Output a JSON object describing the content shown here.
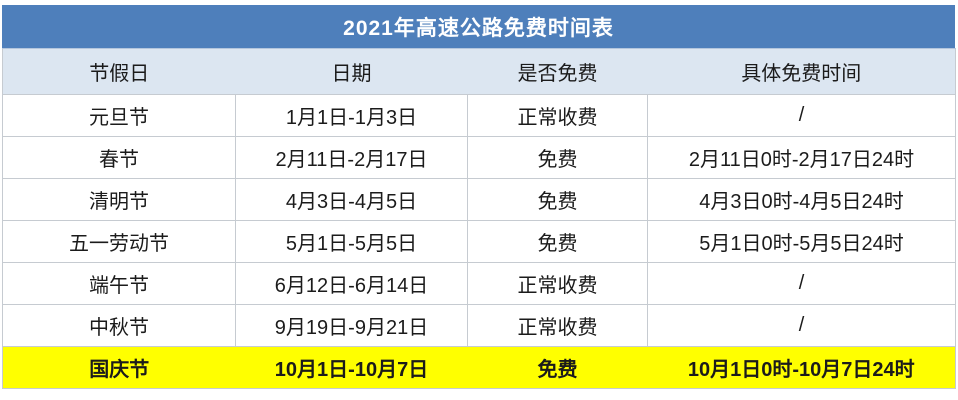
{
  "title": "2021年高速公路免费时间表",
  "colors": {
    "title_bg": "#4E7FBB",
    "title_text": "#FFFFFF",
    "header_bg": "#DCE6F1",
    "grid_line": "#C6CBD1",
    "highlight_row_bg": "#FFFF00",
    "body_text": "#1B1B1B"
  },
  "table": {
    "columns": [
      "节假日",
      "日期",
      "是否免费",
      "具体免费时间"
    ],
    "rows": [
      {
        "holiday": "元旦节",
        "date": "1月1日-1月3日",
        "free": "正常收费",
        "free_time": "/"
      },
      {
        "holiday": "春节",
        "date": "2月11日-2月17日",
        "free": "免费",
        "free_time": "2月11日0时-2月17日24时"
      },
      {
        "holiday": "清明节",
        "date": "4月3日-4月5日",
        "free": "免费",
        "free_time": "4月3日0时-4月5日24时"
      },
      {
        "holiday": "五一劳动节",
        "date": "5月1日-5月5日",
        "free": "免费",
        "free_time": "5月1日0时-5月5日24时"
      },
      {
        "holiday": "端午节",
        "date": "6月12日-6月14日",
        "free": "正常收费",
        "free_time": "/"
      },
      {
        "holiday": "中秋节",
        "date": "9月19日-9月21日",
        "free": "正常收费",
        "free_time": "/"
      },
      {
        "holiday": "国庆节",
        "date": "10月1日-10月7日",
        "free": "免费",
        "free_time": "10月1日0时-10月7日24时"
      }
    ],
    "highlighted_row_index": 6
  }
}
